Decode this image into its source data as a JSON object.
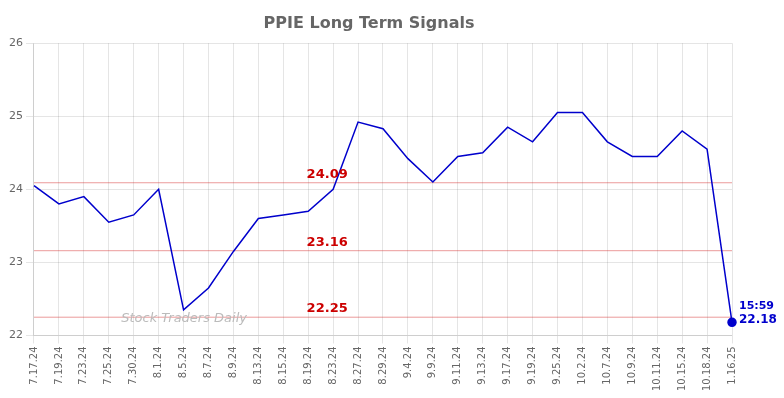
{
  "chart_data": {
    "type": "line",
    "title": "PPIE Long Term Signals",
    "categories": [
      "7.17.24",
      "7.19.24",
      "7.23.24",
      "7.25.24",
      "7.30.24",
      "8.1.24",
      "8.5.24",
      "8.7.24",
      "8.9.24",
      "8.13.24",
      "8.15.24",
      "8.19.24",
      "8.23.24",
      "8.27.24",
      "8.29.24",
      "9.4.24",
      "9.9.24",
      "9.11.24",
      "9.13.24",
      "9.17.24",
      "9.19.24",
      "9.25.24",
      "10.2.24",
      "10.7.24",
      "10.9.24",
      "10.11.24",
      "10.15.24",
      "10.18.24",
      "1.16.25"
    ],
    "values": [
      24.05,
      23.8,
      23.9,
      23.55,
      23.65,
      24.0,
      22.35,
      22.65,
      23.15,
      23.6,
      23.65,
      23.7,
      24.0,
      24.92,
      24.83,
      24.42,
      24.1,
      24.45,
      24.5,
      24.85,
      24.65,
      25.05,
      25.05,
      24.65,
      24.45,
      24.45,
      24.8,
      24.55,
      22.18
    ],
    "color": "#0000cc",
    "ylim": [
      22.0,
      26.0
    ],
    "yticks": [
      22,
      23,
      24,
      25,
      26
    ],
    "grid": true,
    "hlines": [
      {
        "y": 24.09,
        "label": "24.09",
        "color": "#cc0000"
      },
      {
        "y": 23.16,
        "label": "23.16",
        "color": "#cc0000"
      },
      {
        "y": 22.25,
        "label": "22.25",
        "color": "#cc0000"
      }
    ],
    "annotations": [
      {
        "text": "15:59"
      },
      {
        "text": "22.18"
      }
    ],
    "watermark": "Stock Traders Daily"
  }
}
